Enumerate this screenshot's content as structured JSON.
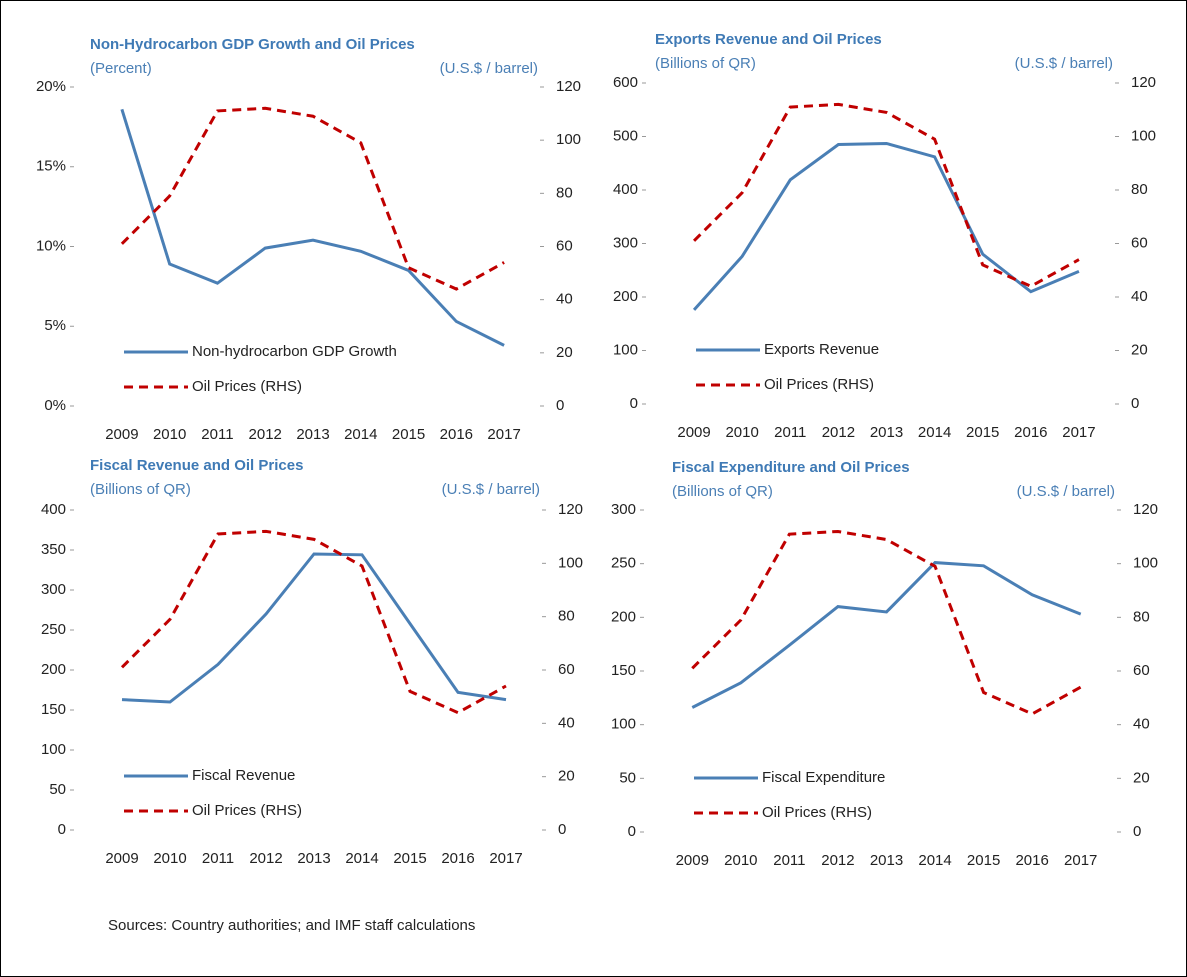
{
  "chart_data": [
    {
      "type": "line",
      "title": "Non-Hydrocarbon GDP Growth and Oil Prices",
      "ylabel": "(Percent)",
      "y2label": "(U.S.$ / barrel)",
      "categories": [
        "2009",
        "2010",
        "2011",
        "2012",
        "2013",
        "2014",
        "2015",
        "2016",
        "2017"
      ],
      "ylim": [
        0,
        20
      ],
      "yticks": [
        {
          "value": 0,
          "label": "0%"
        },
        {
          "value": 5,
          "label": "5%"
        },
        {
          "value": 10,
          "label": "10%"
        },
        {
          "value": 15,
          "label": "15%"
        },
        {
          "value": 20,
          "label": "20%"
        }
      ],
      "y2lim": [
        0,
        120
      ],
      "y2ticks": [
        0,
        20,
        40,
        60,
        80,
        100,
        120
      ],
      "legend": "lower left",
      "series": [
        {
          "name": "Non-hydrocarbon GDP Growth",
          "color": "#4a7fb5",
          "style": "solid",
          "values": [
            18.6,
            8.9,
            7.7,
            9.9,
            10.4,
            9.7,
            8.5,
            5.3,
            3.8
          ]
        },
        {
          "name": "Oil Prices (RHS)",
          "color": "#c00000",
          "style": "dashed",
          "axis": "y2",
          "values": [
            61,
            79,
            111,
            112,
            109,
            99,
            52,
            44,
            54
          ]
        }
      ]
    },
    {
      "type": "line",
      "title": "Exports Revenue and Oil Prices",
      "ylabel": "(Billions of QR)",
      "y2label": "(U.S.$ / barrel)",
      "categories": [
        "2009",
        "2010",
        "2011",
        "2012",
        "2013",
        "2014",
        "2015",
        "2016",
        "2017"
      ],
      "ylim": [
        0,
        600
      ],
      "yticks": [
        0,
        100,
        200,
        300,
        400,
        500,
        600
      ],
      "y2lim": [
        0,
        120
      ],
      "y2ticks": [
        0,
        20,
        40,
        60,
        80,
        100,
        120
      ],
      "legend": "lower left",
      "series": [
        {
          "name": "Exports Revenue",
          "color": "#4a7fb5",
          "style": "solid",
          "values": [
            176,
            276,
            419,
            485,
            487,
            462,
            280,
            210,
            248
          ]
        },
        {
          "name": "Oil Prices (RHS)",
          "color": "#c00000",
          "style": "dashed",
          "axis": "y2",
          "values": [
            61,
            79,
            111,
            112,
            109,
            99,
            52,
            44,
            54
          ]
        }
      ]
    },
    {
      "type": "line",
      "title": "Fiscal Revenue and Oil Prices",
      "ylabel": "(Billions of QR)",
      "y2label": "(U.S.$ / barrel)",
      "categories": [
        "2009",
        "2010",
        "2011",
        "2012",
        "2013",
        "2014",
        "2015",
        "2016",
        "2017"
      ],
      "ylim": [
        0,
        400
      ],
      "yticks": [
        0,
        50,
        100,
        150,
        200,
        250,
        300,
        350,
        400
      ],
      "y2lim": [
        0,
        120
      ],
      "y2ticks": [
        0,
        20,
        40,
        60,
        80,
        100,
        120
      ],
      "legend": "lower left",
      "series": [
        {
          "name": "Fiscal Revenue",
          "color": "#4a7fb5",
          "style": "solid",
          "values": [
            163,
            160,
            207,
            270,
            345,
            344,
            258,
            172,
            163
          ]
        },
        {
          "name": "Oil Prices (RHS)",
          "color": "#c00000",
          "style": "dashed",
          "axis": "y2",
          "values": [
            61,
            79,
            111,
            112,
            109,
            99,
            52,
            44,
            54
          ]
        }
      ]
    },
    {
      "type": "line",
      "title": "Fiscal Expenditure and Oil Prices",
      "ylabel": "(Billions of QR)",
      "y2label": "(U.S.$ / barrel)",
      "categories": [
        "2009",
        "2010",
        "2011",
        "2012",
        "2013",
        "2014",
        "2015",
        "2016",
        "2017"
      ],
      "ylim": [
        0,
        300
      ],
      "yticks": [
        0,
        50,
        100,
        150,
        200,
        250,
        300
      ],
      "y2lim": [
        0,
        120
      ],
      "y2ticks": [
        0,
        20,
        40,
        60,
        80,
        100,
        120
      ],
      "legend": "lower left",
      "series": [
        {
          "name": "Fiscal Expenditure",
          "color": "#4a7fb5",
          "style": "solid",
          "values": [
            116,
            139,
            174,
            210,
            205,
            251,
            248,
            221,
            203
          ]
        },
        {
          "name": "Oil Prices (RHS)",
          "color": "#c00000",
          "style": "dashed",
          "axis": "y2",
          "values": [
            61,
            79,
            111,
            112,
            109,
            99,
            52,
            44,
            54
          ]
        }
      ]
    }
  ],
  "source": "Sources: Country authorities; and IMF staff calculations"
}
